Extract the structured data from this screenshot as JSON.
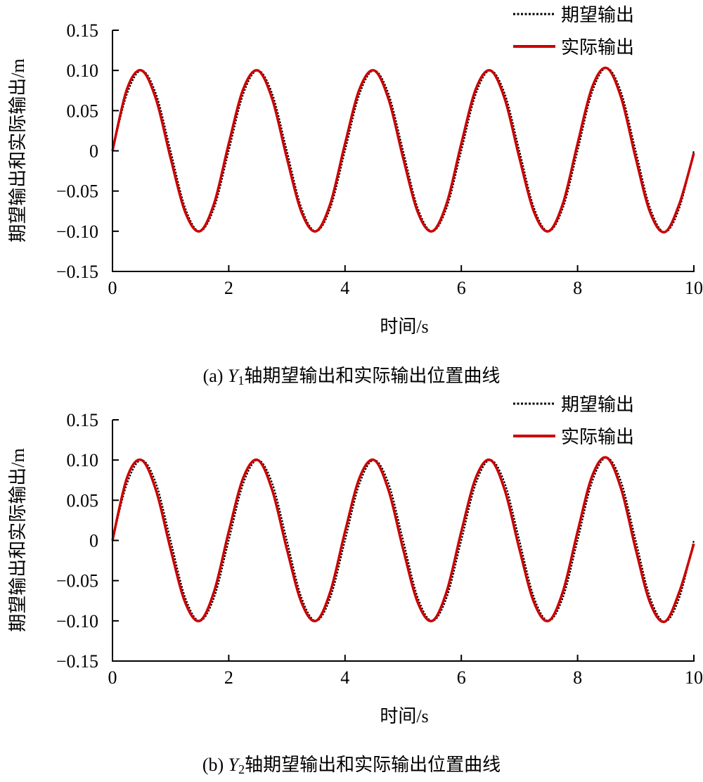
{
  "chart_data": [
    {
      "type": "line",
      "caption": {
        "prefix": "(a) ",
        "var": "Y",
        "sub": "1",
        "rest": "轴期望输出和实际输出位置曲线"
      },
      "xlabel": "时间/s",
      "ylabel": "期望输出和实际输出/m",
      "xlim": [
        0,
        10
      ],
      "ylim": [
        -0.15,
        0.15
      ],
      "xticks": [
        "0",
        "2",
        "4",
        "6",
        "8",
        "10"
      ],
      "yticks": [
        "0.15",
        "0.10",
        "0.05",
        "0",
        "−0.05",
        "−0.10",
        "−0.15"
      ],
      "grid": false,
      "legend": "top-right",
      "x": [
        0,
        0.25,
        0.5,
        0.75,
        1,
        1.25,
        1.5,
        1.75,
        2,
        2.25,
        2.5,
        2.75,
        3,
        3.25,
        3.5,
        3.75,
        4,
        4.25,
        4.5,
        4.75,
        5,
        5.25,
        5.5,
        5.75,
        6,
        6.25,
        6.5,
        6.75,
        7,
        7.25,
        7.5,
        7.75,
        8,
        8.25,
        8.5,
        8.75,
        9,
        9.25,
        9.5,
        9.75,
        10
      ],
      "series": [
        {
          "name": "期望输出",
          "style": "dotted",
          "color": "#000000",
          "values": [
            0,
            0.0707,
            0.1,
            0.0707,
            0,
            -0.0707,
            -0.1,
            -0.0707,
            0,
            0.0707,
            0.1,
            0.0707,
            0,
            -0.0707,
            -0.1,
            -0.0707,
            0,
            0.0707,
            0.1,
            0.0707,
            0,
            -0.0707,
            -0.1,
            -0.0707,
            0,
            0.0707,
            0.1,
            0.0707,
            0,
            -0.0707,
            -0.1,
            -0.0707,
            0,
            0.0728,
            0.103,
            0.0728,
            0,
            -0.0714,
            -0.101,
            -0.0714,
            0
          ]
        },
        {
          "name": "实际输出",
          "style": "solid",
          "color": "#cc0000",
          "values": [
            0,
            0.077,
            0.1,
            0.064,
            -0.009,
            -0.076,
            -0.1,
            -0.065,
            0.009,
            0.077,
            0.1,
            0.064,
            -0.009,
            -0.076,
            -0.1,
            -0.065,
            0.009,
            0.077,
            0.1,
            0.064,
            -0.009,
            -0.076,
            -0.1,
            -0.065,
            0.009,
            0.077,
            0.1,
            0.064,
            -0.009,
            -0.076,
            -0.1,
            -0.065,
            0.009,
            0.079,
            0.103,
            0.066,
            -0.009,
            -0.077,
            -0.101,
            -0.066,
            -0.003
          ]
        }
      ]
    },
    {
      "type": "line",
      "caption": {
        "prefix": "(b) ",
        "var": "Y",
        "sub": "2",
        "rest": "轴期望输出和实际输出位置曲线"
      },
      "xlabel": "时间/s",
      "ylabel": "期望输出和实际输出/m",
      "xlim": [
        0,
        10
      ],
      "ylim": [
        -0.15,
        0.15
      ],
      "xticks": [
        "0",
        "2",
        "4",
        "6",
        "8",
        "10"
      ],
      "yticks": [
        "0.15",
        "0.10",
        "0.05",
        "0",
        "−0.05",
        "−0.10",
        "−0.15"
      ],
      "grid": false,
      "legend": "top-right",
      "x": [
        0,
        0.25,
        0.5,
        0.75,
        1,
        1.25,
        1.5,
        1.75,
        2,
        2.25,
        2.5,
        2.75,
        3,
        3.25,
        3.5,
        3.75,
        4,
        4.25,
        4.5,
        4.75,
        5,
        5.25,
        5.5,
        5.75,
        6,
        6.25,
        6.5,
        6.75,
        7,
        7.25,
        7.5,
        7.75,
        8,
        8.25,
        8.5,
        8.75,
        9,
        9.25,
        9.5,
        9.75,
        10
      ],
      "series": [
        {
          "name": "期望输出",
          "style": "dotted",
          "color": "#000000",
          "values": [
            0,
            0.0707,
            0.1,
            0.0707,
            0,
            -0.0707,
            -0.1,
            -0.0707,
            0,
            0.0707,
            0.1,
            0.0707,
            0,
            -0.0707,
            -0.1,
            -0.0707,
            0,
            0.0707,
            0.1,
            0.0707,
            0,
            -0.0707,
            -0.1,
            -0.0707,
            0,
            0.0707,
            0.1,
            0.0707,
            0,
            -0.0707,
            -0.1,
            -0.0707,
            0,
            0.0728,
            0.103,
            0.0728,
            0,
            -0.0714,
            -0.101,
            -0.0714,
            0
          ]
        },
        {
          "name": "实际输出",
          "style": "solid",
          "color": "#cc0000",
          "values": [
            0,
            0.078,
            0.1,
            0.062,
            -0.011,
            -0.077,
            -0.1,
            -0.063,
            0.011,
            0.078,
            0.1,
            0.062,
            -0.011,
            -0.077,
            -0.1,
            -0.063,
            0.011,
            0.078,
            0.1,
            0.062,
            -0.011,
            -0.077,
            -0.1,
            -0.063,
            0.011,
            0.078,
            0.1,
            0.062,
            -0.011,
            -0.077,
            -0.1,
            -0.063,
            0.011,
            0.08,
            0.103,
            0.064,
            -0.011,
            -0.078,
            -0.101,
            -0.064,
            -0.004
          ]
        }
      ]
    }
  ]
}
